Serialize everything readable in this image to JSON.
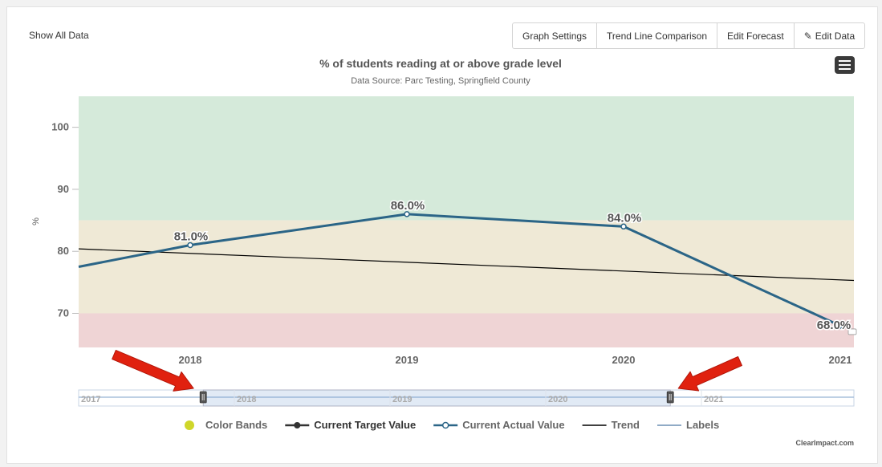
{
  "toolbar": {
    "show_all": "Show All Data",
    "buttons": [
      "Graph Settings",
      "Trend Line Comparison",
      "Edit Forecast",
      "Edit Data"
    ]
  },
  "chart_data": {
    "type": "line",
    "title": "% of students reading at or above grade level",
    "subtitle": "Data Source: Parc Testing, Springfield County",
    "ylabel": "%",
    "xlabel": "",
    "categories": [
      "2018",
      "2019",
      "2020",
      "2021"
    ],
    "ylim": [
      64.5,
      105
    ],
    "yticks": [
      70,
      80,
      90,
      100
    ],
    "series": [
      {
        "name": "Current Actual Value",
        "color": "#2b6587",
        "x": [
          2017.5,
          2018,
          2019,
          2020,
          2021
        ],
        "values": [
          77.5,
          81.0,
          86.0,
          84.0,
          68.0
        ],
        "labels": [
          "",
          "81.0%",
          "86.0%",
          "84.0%",
          "68.0%"
        ]
      },
      {
        "name": "Trend",
        "color": "#000000",
        "x": [
          2017.5,
          2021
        ],
        "values": [
          80.4,
          75.3
        ]
      }
    ],
    "bands": [
      {
        "from": 85,
        "to": 105,
        "color": "#d5eada"
      },
      {
        "from": 70,
        "to": 85,
        "color": "#efe9d6"
      },
      {
        "from": 64.5,
        "to": 70,
        "color": "#efd4d5"
      }
    ],
    "navigator": {
      "labels": [
        "2017",
        "2018",
        "2019",
        "2020",
        "2021"
      ],
      "range": [
        2017.8,
        2020.8
      ]
    },
    "legend": [
      {
        "label": "Color Bands",
        "color": "#cfd62a",
        "kind": "dot"
      },
      {
        "label": "Current Target Value",
        "color": "#333333",
        "kind": "line-dot"
      },
      {
        "label": "Current Actual Value",
        "color": "#2b6587",
        "kind": "line-circle"
      },
      {
        "label": "Trend",
        "color": "#000000",
        "kind": "line"
      },
      {
        "label": "Labels",
        "color": "#6b8fb3",
        "kind": "line"
      }
    ],
    "credit": "ClearImpact.com"
  }
}
